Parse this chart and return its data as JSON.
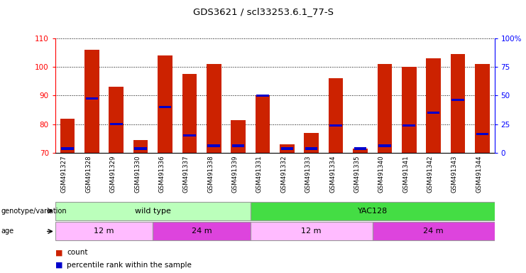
{
  "title": "GDS3621 / scl33253.6.1_77-S",
  "samples": [
    "GSM491327",
    "GSM491328",
    "GSM491329",
    "GSM491330",
    "GSM491336",
    "GSM491337",
    "GSM491338",
    "GSM491339",
    "GSM491331",
    "GSM491332",
    "GSM491333",
    "GSM491334",
    "GSM491335",
    "GSM491340",
    "GSM491341",
    "GSM491342",
    "GSM491343",
    "GSM491344"
  ],
  "counts": [
    82,
    106,
    93,
    74.5,
    104,
    97.5,
    101,
    81.5,
    90,
    73,
    77,
    96,
    71.5,
    101,
    100,
    103,
    104.5,
    101
  ],
  "percentile_values": [
    71.5,
    89,
    80,
    71.5,
    86,
    76,
    72.5,
    72.5,
    90,
    71.5,
    71.5,
    79.5,
    71.5,
    72.5,
    79.5,
    84,
    88.5,
    76.5
  ],
  "ymin": 70,
  "ymax": 110,
  "y_ticks": [
    70,
    80,
    90,
    100,
    110
  ],
  "right_ticks": [
    0,
    25,
    50,
    75,
    100
  ],
  "right_tick_positions": [
    70,
    80,
    90,
    100,
    110
  ],
  "bar_color": "#cc2200",
  "percentile_color": "#0000cc",
  "genotype_groups": [
    {
      "label": "wild type",
      "start": 0,
      "end": 8,
      "color": "#bbffbb"
    },
    {
      "label": "YAC128",
      "start": 8,
      "end": 18,
      "color": "#44dd44"
    }
  ],
  "age_groups": [
    {
      "label": "12 m",
      "start": 0,
      "end": 4,
      "color": "#ffbbff"
    },
    {
      "label": "24 m",
      "start": 4,
      "end": 8,
      "color": "#dd44dd"
    },
    {
      "label": "12 m",
      "start": 8,
      "end": 13,
      "color": "#ffbbff"
    },
    {
      "label": "24 m",
      "start": 13,
      "end": 18,
      "color": "#dd44dd"
    }
  ],
  "legend_count_color": "#cc2200",
  "legend_pct_color": "#0000cc"
}
